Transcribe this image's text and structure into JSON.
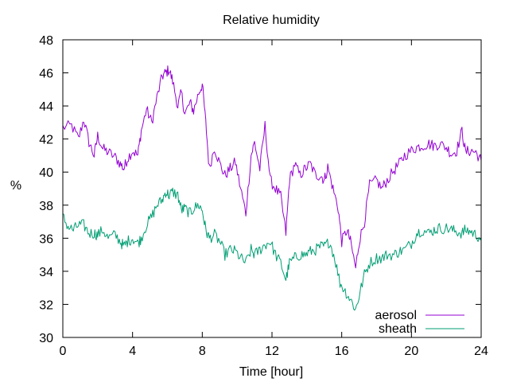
{
  "chart_data": {
    "type": "line",
    "title": "Relative humidity",
    "xlabel": "Time [hour]",
    "ylabel": "%",
    "xlim": [
      0,
      24
    ],
    "ylim": [
      30,
      48
    ],
    "xticks": [
      0,
      4,
      8,
      12,
      16,
      20,
      24
    ],
    "yticks": [
      30,
      32,
      34,
      36,
      38,
      40,
      42,
      44,
      46,
      48
    ],
    "grid": false,
    "legend_position": "bottom-right",
    "series": [
      {
        "name": "aerosol",
        "color": "#9400d3",
        "x": [
          0,
          0.5,
          0.9,
          1.2,
          1.5,
          1.8,
          2.0,
          2.3,
          2.6,
          3.0,
          3.3,
          3.5,
          3.7,
          4.0,
          4.3,
          4.5,
          4.8,
          5.1,
          5.4,
          5.7,
          5.9,
          6.1,
          6.3,
          6.6,
          6.8,
          7.0,
          7.3,
          7.5,
          7.8,
          8.0,
          8.2,
          8.4,
          8.7,
          9.0,
          9.3,
          9.6,
          9.9,
          10.2,
          10.5,
          10.8,
          11.0,
          11.3,
          11.6,
          11.9,
          12.2,
          12.5,
          12.8,
          13.0,
          13.3,
          13.6,
          13.9,
          14.2,
          14.5,
          14.8,
          15.0,
          15.2,
          15.5,
          15.8,
          16.0,
          16.3,
          16.5,
          16.8,
          17.0,
          17.3,
          17.6,
          18.0,
          18.3,
          18.6,
          19.0,
          19.3,
          19.6,
          20.0,
          20.3,
          20.6,
          21.0,
          21.3,
          21.6,
          22.0,
          22.3,
          22.6,
          22.9,
          23.1,
          23.4,
          23.7,
          24.0
        ],
        "y": [
          42.7,
          42.8,
          42.0,
          43.2,
          41.8,
          41.0,
          42.2,
          41.4,
          41.2,
          40.9,
          40.5,
          40.2,
          40.8,
          41.3,
          41.0,
          42.5,
          43.8,
          43.0,
          44.5,
          45.8,
          46.0,
          46.2,
          45.5,
          44.0,
          44.8,
          43.5,
          44.2,
          43.7,
          44.8,
          45.3,
          43.0,
          40.2,
          41.5,
          40.5,
          39.8,
          40.2,
          40.6,
          39.0,
          37.5,
          41.0,
          41.8,
          40.2,
          42.8,
          39.5,
          39.0,
          38.5,
          36.3,
          39.5,
          40.5,
          39.8,
          40.2,
          40.5,
          39.8,
          39.8,
          39.5,
          40.3,
          39.0,
          37.8,
          35.8,
          36.5,
          35.8,
          34.2,
          35.8,
          37.0,
          39.2,
          39.5,
          39.0,
          39.5,
          40.1,
          40.5,
          41.0,
          41.3,
          41.5,
          41.6,
          41.7,
          41.6,
          41.7,
          41.5,
          41.1,
          41.3,
          42.5,
          41.2,
          41.3,
          41.2,
          40.7
        ]
      },
      {
        "name": "sheath",
        "color": "#009e73",
        "x": [
          0,
          0.3,
          0.6,
          0.9,
          1.2,
          1.5,
          1.8,
          2.0,
          2.3,
          2.6,
          3.0,
          3.3,
          3.5,
          3.7,
          4.0,
          4.3,
          4.5,
          4.8,
          5.1,
          5.4,
          5.7,
          5.9,
          6.1,
          6.3,
          6.6,
          6.8,
          7.0,
          7.3,
          7.5,
          7.8,
          8.0,
          8.2,
          8.4,
          8.7,
          9.0,
          9.3,
          9.6,
          9.9,
          10.2,
          10.5,
          10.8,
          11.0,
          11.3,
          11.6,
          11.9,
          12.2,
          12.5,
          12.8,
          13.0,
          13.3,
          13.6,
          13.9,
          14.2,
          14.5,
          14.8,
          15.0,
          15.3,
          15.6,
          15.9,
          16.2,
          16.5,
          16.8,
          17.0,
          17.3,
          17.6,
          18.0,
          18.3,
          18.6,
          19.0,
          19.3,
          19.6,
          20.0,
          20.3,
          20.6,
          21.0,
          21.3,
          21.6,
          22.0,
          22.3,
          22.6,
          22.9,
          23.1,
          23.4,
          23.7,
          24.0
        ],
        "y": [
          37.3,
          36.7,
          36.5,
          36.8,
          36.8,
          36.3,
          36.3,
          36.2,
          36.5,
          36.0,
          36.2,
          35.8,
          35.5,
          35.8,
          36.0,
          35.7,
          36.0,
          36.8,
          37.3,
          38.0,
          38.3,
          38.8,
          38.6,
          38.8,
          38.6,
          37.7,
          37.8,
          37.5,
          37.8,
          38.0,
          37.7,
          36.5,
          36.0,
          36.2,
          35.8,
          35.0,
          35.3,
          35.2,
          34.8,
          34.5,
          35.3,
          35.0,
          35.3,
          35.6,
          35.8,
          35.0,
          34.5,
          33.5,
          34.5,
          34.8,
          35.0,
          35.0,
          35.2,
          35.3,
          35.5,
          35.5,
          35.8,
          34.8,
          33.3,
          32.8,
          32.3,
          31.7,
          32.5,
          33.8,
          34.5,
          34.8,
          34.8,
          35.0,
          35.0,
          35.2,
          35.3,
          35.7,
          36.3,
          36.5,
          36.3,
          36.5,
          36.6,
          36.6,
          36.5,
          36.4,
          36.3,
          36.5,
          36.4,
          36.2,
          36.0
        ]
      }
    ]
  }
}
